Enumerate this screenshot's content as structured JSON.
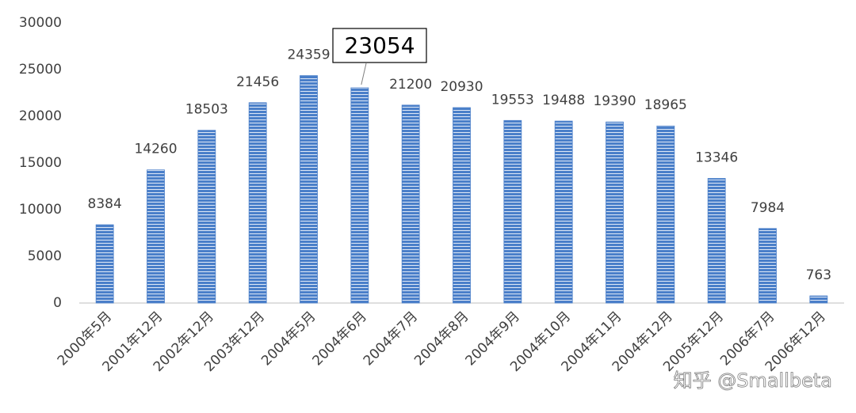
{
  "chart_data": {
    "type": "bar",
    "categories": [
      "2000年5月",
      "2001年12月",
      "2002年12月",
      "2003年12月",
      "2004年5月",
      "2004年6月",
      "2004年7月",
      "2004年8月",
      "2004年9月",
      "2004年10月",
      "2004年11月",
      "2004年12月",
      "2005年12月",
      "2006年7月",
      "2006年12月"
    ],
    "values": [
      8384,
      14260,
      18503,
      21456,
      24359,
      23054,
      21200,
      20930,
      19553,
      19488,
      19390,
      18965,
      13346,
      7984,
      763
    ],
    "color": "#4a7fc9",
    "ylim": [
      0,
      30000
    ],
    "yticks": [
      0,
      5000,
      10000,
      15000,
      20000,
      25000,
      30000
    ],
    "grid": false,
    "watermark": "知乎 @Smallbeta"
  }
}
